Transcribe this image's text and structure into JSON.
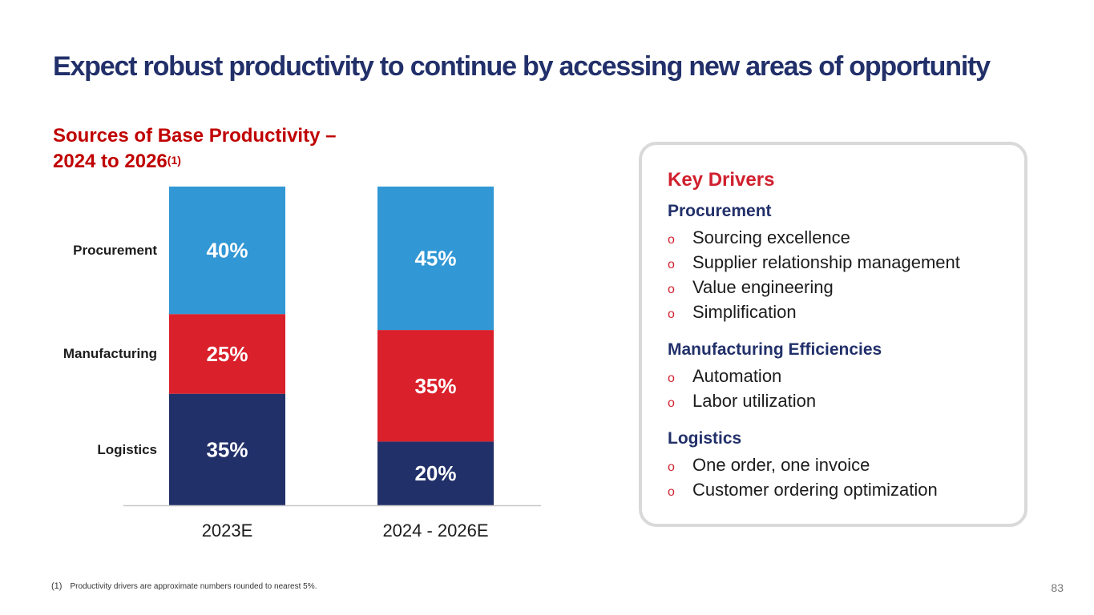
{
  "title": "Expect robust productivity to continue by accessing new areas of opportunity",
  "subtitle": {
    "line1": "Sources of Base Productivity –",
    "line2": "2024 to 2026",
    "sup": "(1)"
  },
  "row_labels": {
    "procurement": "Procurement",
    "manufacturing": "Manufacturing",
    "logistics": "Logistics"
  },
  "chart_data": {
    "type": "bar",
    "stacked": true,
    "percent_stacked": true,
    "categories": [
      "2023E",
      "2024 - 2026E"
    ],
    "series": [
      {
        "name": "Logistics",
        "values": [
          35,
          20
        ],
        "labels": [
          "35%",
          "20%"
        ],
        "color": "#22306a"
      },
      {
        "name": "Manufacturing",
        "values": [
          25,
          35
        ],
        "labels": [
          "25%",
          "35%"
        ],
        "color": "#d9202b"
      },
      {
        "name": "Procurement",
        "values": [
          40,
          45
        ],
        "labels": [
          "40%",
          "45%"
        ],
        "color": "#3197d5"
      }
    ],
    "ylim": [
      0,
      100
    ],
    "grid": false,
    "legend": "left"
  },
  "key_drivers": {
    "title": "Key Drivers",
    "groups": [
      {
        "heading": "Procurement",
        "items": [
          "Sourcing excellence",
          "Supplier relationship management",
          "Value engineering",
          "Simplification"
        ]
      },
      {
        "heading": "Manufacturing Efficiencies",
        "items": [
          "Automation",
          "Labor utilization"
        ]
      },
      {
        "heading": "Logistics",
        "items": [
          "One order, one invoice",
          "Customer ordering optimization"
        ]
      }
    ],
    "bullet": "o"
  },
  "footnote": {
    "mark": "(1)",
    "text": "Productivity drivers are approximate numbers rounded to nearest 5%."
  },
  "page_number": "83"
}
